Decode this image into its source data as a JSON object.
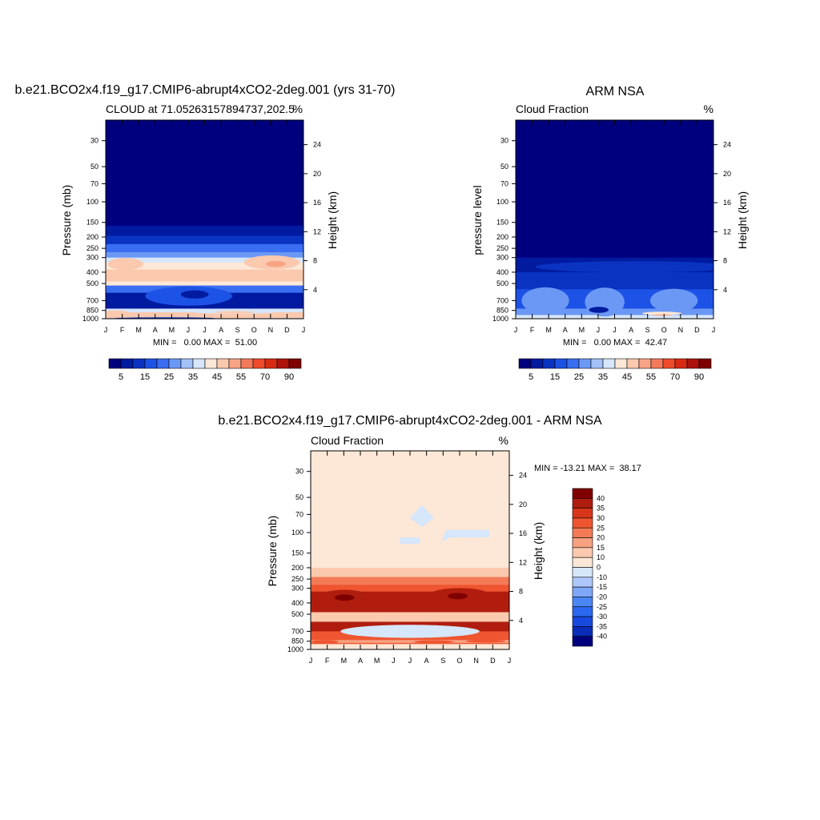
{
  "palette": {
    "cloud": [
      "#00007f",
      "#001aa0",
      "#0a33c2",
      "#1d52e6",
      "#3a6ef2",
      "#6c98f5",
      "#a3c1f8",
      "#d6e6fb",
      "#fde7d6",
      "#fbc9ae",
      "#f8a385",
      "#f47a5c",
      "#ef4a2c",
      "#d82a12",
      "#ad130b",
      "#7f0000"
    ],
    "diff": [
      "#00007f",
      "#0a2db8",
      "#1849de",
      "#2a68f0",
      "#4b86f5",
      "#7ea7f7",
      "#aec7fa",
      "#d6e6fb",
      "#fde7d6",
      "#fbc9ae",
      "#f7a180",
      "#f37a55",
      "#ee5530",
      "#d9351a",
      "#b01d0e",
      "#7f0000"
    ]
  },
  "panels": [
    {
      "title": "b.e21.BCO2x4.f19_g17.CMIP6-abrupt4xCO2-2deg.001 (yrs 31-70)",
      "left_label": "CLOUD at 71.05263157894737,202.5",
      "unit_label": "%",
      "ylabel": "Pressure (mb)",
      "right_ylabel": "Height (km)",
      "stats": "MIN =   0.00 MAX =  51.00",
      "chart_data": {
        "type": "heatmap",
        "x": [
          "J",
          "F",
          "M",
          "A",
          "M",
          "J",
          "J",
          "A",
          "S",
          "O",
          "N",
          "D",
          "J"
        ],
        "y_pressure": [
          30,
          50,
          70,
          100,
          150,
          200,
          250,
          300,
          400,
          500,
          700,
          850,
          1000
        ],
        "height_km": [
          4,
          8,
          12,
          16,
          20,
          24
        ],
        "ylim": [
          1000,
          20
        ],
        "min": 0.0,
        "max": 51.0,
        "field": [
          {
            "p": [
              1000,
              20
            ],
            "v": 2
          },
          {
            "p": [
              1000,
              160
            ],
            "v": 8
          },
          {
            "p": [
              1000,
              195
            ],
            "v": 14
          },
          {
            "p": [
              1000,
              230
            ],
            "v": 22
          },
          {
            "p": [
              1000,
              270
            ],
            "v": 30
          },
          {
            "p": [
              900,
              300
            ],
            "v": 36
          },
          {
            "p": [
              650,
              330
            ],
            "v": 42
          },
          {
            "p": [
              480,
              380
            ],
            "v": 46
          },
          {
            "p": [
              750,
              520
            ],
            "v": 22
          },
          {
            "p": [
              850,
              600
            ],
            "v": 10
          },
          {
            "p": [
              950,
              820
            ],
            "v": 36
          },
          {
            "p": [
              990,
              880
            ],
            "v": 46
          }
        ]
      },
      "colorbar": {
        "labels": [
          "5",
          "15",
          "25",
          "35",
          "45",
          "55",
          "70",
          "90"
        ]
      }
    },
    {
      "title": "ARM NSA",
      "left_label": "Cloud Fraction",
      "unit_label": "%",
      "ylabel": "pressure level",
      "right_ylabel": "Height (km)",
      "stats": "MIN =   0.00 MAX =  42.47",
      "chart_data": {
        "type": "heatmap",
        "x": [
          "J",
          "F",
          "M",
          "A",
          "M",
          "J",
          "J",
          "A",
          "S",
          "O",
          "N",
          "D",
          "J"
        ],
        "y_pressure": [
          30,
          50,
          70,
          100,
          150,
          200,
          250,
          300,
          400,
          500,
          700,
          850,
          1000
        ],
        "height_km": [
          4,
          8,
          12,
          16,
          20,
          24
        ],
        "ylim": [
          1000,
          20
        ],
        "min": 0.0,
        "max": 42.47,
        "field": [
          {
            "p": [
              1000,
              20
            ],
            "v": 2
          },
          {
            "p": [
              1000,
              300
            ],
            "v": 8
          },
          {
            "p": [
              1000,
              400
            ],
            "v": 12
          },
          {
            "p": [
              1000,
              560
            ],
            "v": 18
          },
          {
            "p": [
              1000,
              820
            ],
            "v": 26
          },
          {
            "p": [
              1000,
              930
            ],
            "v": 40
          }
        ]
      },
      "colorbar": {
        "labels": [
          "5",
          "15",
          "25",
          "35",
          "45",
          "55",
          "70",
          "90"
        ]
      }
    },
    {
      "title": "b.e21.BCO2x4.f19_g17.CMIP6-abrupt4xCO2-2deg.001 - ARM NSA",
      "left_label": "Cloud Fraction",
      "unit_label": "%",
      "ylabel": "Pressure (mb)",
      "right_ylabel": "Height (km)",
      "stats": "MIN = -13.21 MAX =  38.17",
      "chart_data": {
        "type": "heatmap",
        "x": [
          "J",
          "F",
          "M",
          "A",
          "M",
          "J",
          "J",
          "A",
          "S",
          "O",
          "N",
          "D",
          "J"
        ],
        "y_pressure": [
          30,
          50,
          70,
          100,
          150,
          200,
          250,
          300,
          400,
          500,
          700,
          850,
          1000
        ],
        "height_km": [
          4,
          8,
          12,
          16,
          20,
          24
        ],
        "ylim": [
          1000,
          20
        ],
        "min": -13.21,
        "max": 38.17,
        "field": [
          {
            "p": [
              1000,
              20
            ],
            "v": 3
          },
          {
            "p": [
              1000,
              200
            ],
            "v": 12
          },
          {
            "p": [
              1000,
              240
            ],
            "v": 22
          },
          {
            "p": [
              900,
              280
            ],
            "v": 30
          },
          {
            "p": [
              700,
              320
            ],
            "v": 36
          },
          {
            "p": [
              580,
              480
            ],
            "v": 12
          },
          {
            "p": [
              700,
              700
            ],
            "v": -4
          },
          {
            "p": [
              880,
              830
            ],
            "v": 18
          },
          {
            "p": [
              1000,
              900
            ],
            "v": 4
          }
        ]
      },
      "colorbar": {
        "labels": [
          "40",
          "35",
          "30",
          "25",
          "20",
          "15",
          "10",
          "0",
          "-10",
          "-15",
          "-20",
          "-25",
          "-30",
          "-35",
          "-40"
        ]
      }
    }
  ]
}
